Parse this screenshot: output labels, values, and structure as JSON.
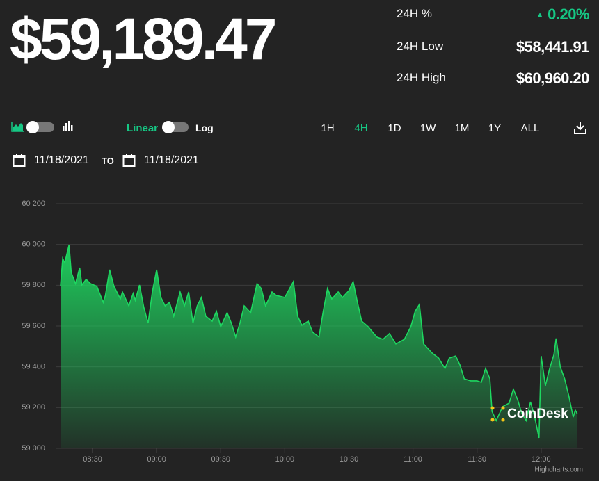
{
  "price": "$59,189.47",
  "stats": [
    {
      "label": "24H %",
      "value": "0.20%"
    },
    {
      "label": "24H Low",
      "value": "$58,441.91"
    },
    {
      "label": "24H High",
      "value": "$60,960.20"
    }
  ],
  "controls": {
    "scale_linear": "Linear",
    "scale_log": "Log",
    "ranges": [
      "1H",
      "4H",
      "1D",
      "1W",
      "1M",
      "1Y",
      "ALL"
    ],
    "active_range": 1
  },
  "dates": {
    "from": "11/18/2021",
    "to_label": "TO",
    "to": "11/18/2021"
  },
  "watermark": "CoinDesk",
  "credit": "Highcharts.com",
  "chart_data": {
    "type": "area",
    "color": "#1ed760",
    "grid": true,
    "x": [
      "08:15",
      "08:16",
      "08:17",
      "08:19",
      "08:20",
      "08:22",
      "08:24",
      "08:25",
      "08:27",
      "08:29",
      "08:32",
      "08:35",
      "08:36",
      "08:38",
      "08:40",
      "08:43",
      "08:44",
      "08:47",
      "08:49",
      "08:50",
      "08:52",
      "08:54",
      "08:56",
      "08:58",
      "09:00",
      "09:02",
      "09:04",
      "09:06",
      "09:08",
      "09:11",
      "09:13",
      "09:15",
      "09:17",
      "09:19",
      "09:21",
      "09:23",
      "09:26",
      "09:28",
      "09:30",
      "09:33",
      "09:35",
      "09:37",
      "09:39",
      "09:41",
      "09:44",
      "09:47",
      "09:49",
      "09:51",
      "09:54",
      "09:56",
      "10:00",
      "10:04",
      "10:06",
      "10:08",
      "10:11",
      "10:13",
      "10:16",
      "10:18",
      "10:20",
      "10:22",
      "10:25",
      "10:27",
      "10:30",
      "10:32",
      "10:34",
      "10:36",
      "10:39",
      "10:43",
      "10:46",
      "10:49",
      "10:52",
      "10:56",
      "10:59",
      "11:01",
      "11:03",
      "11:05",
      "11:09",
      "11:12",
      "11:15",
      "11:17",
      "11:20",
      "11:22",
      "11:24",
      "11:27",
      "11:30",
      "11:32",
      "11:34",
      "11:36",
      "11:37",
      "11:39",
      "11:42",
      "11:45",
      "11:47",
      "11:49",
      "11:51",
      "11:53",
      "11:55",
      "11:57",
      "11:59",
      "12:00",
      "12:02",
      "12:04",
      "12:06",
      "12:07",
      "12:09",
      "12:11",
      "12:13",
      "12:15",
      "12:16",
      "12:17"
    ],
    "values": [
      59795,
      59931,
      59910,
      59999,
      59863,
      59808,
      59886,
      59801,
      59829,
      59808,
      59795,
      59716,
      59750,
      59876,
      59795,
      59733,
      59767,
      59699,
      59760,
      59726,
      59801,
      59692,
      59614,
      59767,
      59876,
      59740,
      59699,
      59716,
      59648,
      59767,
      59699,
      59767,
      59614,
      59699,
      59740,
      59648,
      59624,
      59672,
      59597,
      59665,
      59614,
      59546,
      59614,
      59699,
      59665,
      59808,
      59784,
      59699,
      59767,
      59750,
      59740,
      59818,
      59648,
      59604,
      59624,
      59570,
      59546,
      59672,
      59784,
      59733,
      59767,
      59740,
      59774,
      59818,
      59716,
      59624,
      59597,
      59546,
      59535,
      59563,
      59512,
      59535,
      59597,
      59672,
      59706,
      59512,
      59467,
      59443,
      59392,
      59443,
      59453,
      59409,
      59341,
      59331,
      59331,
      59324,
      59392,
      59341,
      59181,
      59136,
      59205,
      59222,
      59290,
      59239,
      59170,
      59136,
      59228,
      59153,
      59051,
      59453,
      59307,
      59392,
      59460,
      59539,
      59399,
      59341,
      59256,
      59153,
      59187,
      59167
    ],
    "xlim": [
      "08:15",
      "12:17"
    ],
    "xticks": [
      "08:30",
      "09:00",
      "09:30",
      "10:00",
      "10:30",
      "11:00",
      "11:30",
      "12:00"
    ],
    "ylim": [
      59000,
      60200
    ],
    "yticks": [
      {
        "value": 59000,
        "label": "59 000"
      },
      {
        "value": 59200,
        "label": "59 200"
      },
      {
        "value": 59400,
        "label": "59 400"
      },
      {
        "value": 59600,
        "label": "59 600"
      },
      {
        "value": 59800,
        "label": "59 800"
      },
      {
        "value": 60000,
        "label": "60 000"
      },
      {
        "value": 60200,
        "label": "60 200"
      }
    ]
  }
}
